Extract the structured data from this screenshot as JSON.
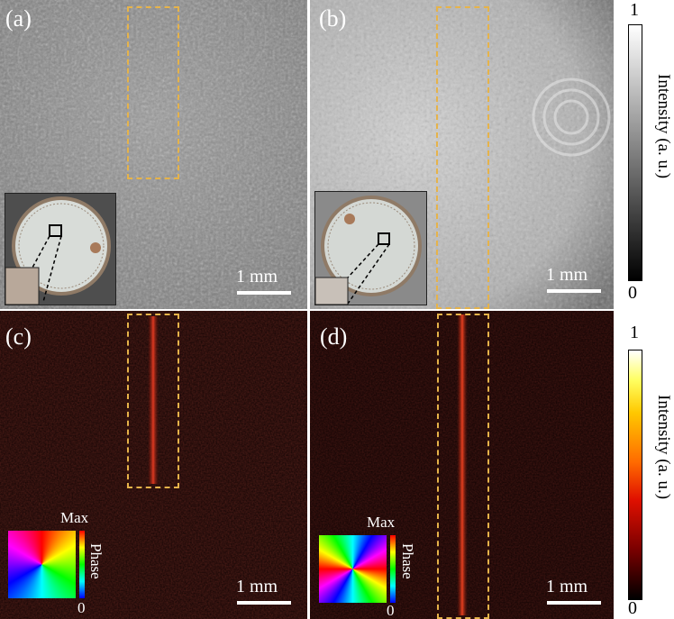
{
  "panels": {
    "a": {
      "label": "(a)",
      "scale": "1 mm"
    },
    "b": {
      "label": "(b)",
      "scale": "1 mm"
    },
    "c": {
      "label": "(c)",
      "scale": "1 mm"
    },
    "d": {
      "label": "(d)",
      "scale": "1 mm"
    }
  },
  "colorbar_gray": {
    "max": "1",
    "min": "0",
    "title": "Intensity (a. u.)"
  },
  "colorbar_hot": {
    "max": "1",
    "min": "0",
    "title": "Intensity (a. u.)"
  },
  "phase_legend_c": {
    "max": "Max",
    "min": "0",
    "title": "Phase"
  },
  "phase_legend_d": {
    "max": "Max",
    "min": "0",
    "title": "Phase"
  },
  "colors": {
    "dashed_box": "#e6b34a",
    "hot_line": "#d42a1a"
  }
}
